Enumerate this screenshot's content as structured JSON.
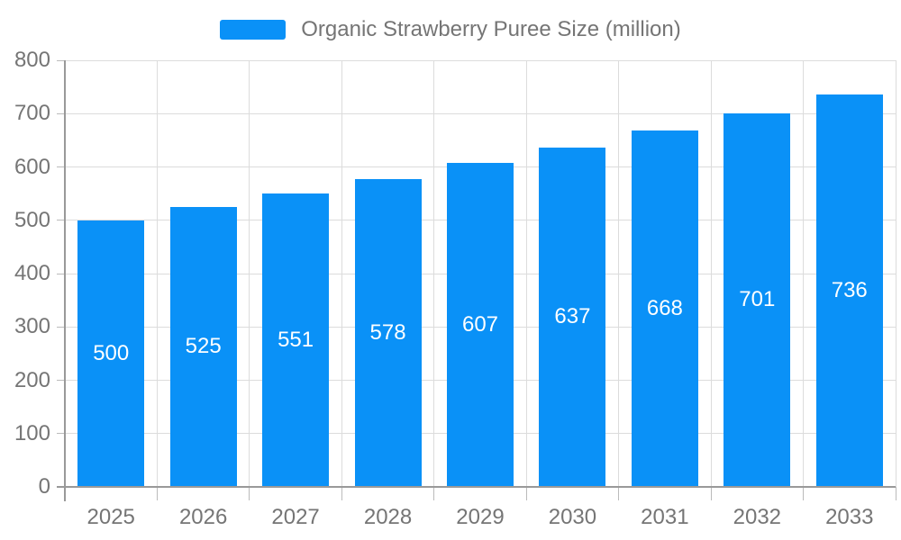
{
  "chart_data": {
    "type": "bar",
    "title": "Organic Strawberry Puree Size (million)",
    "categories": [
      "2025",
      "2026",
      "2027",
      "2028",
      "2029",
      "2030",
      "2031",
      "2032",
      "2033"
    ],
    "values": [
      500,
      525,
      551,
      578,
      607,
      637,
      668,
      701,
      736
    ],
    "series": [
      {
        "name": "Organic Strawberry Puree Size (million)",
        "values": [
          500,
          525,
          551,
          578,
          607,
          637,
          668,
          701,
          736
        ]
      }
    ],
    "xlabel": "",
    "ylabel": "",
    "ylim": [
      0,
      800
    ],
    "yticks": [
      0,
      100,
      200,
      300,
      400,
      500,
      600,
      700,
      800
    ],
    "grid": true,
    "legend_position": "top-center",
    "bar_label_position": "inside-center",
    "colors": {
      "bar": "#0a91f7",
      "axis_line": "#999999",
      "grid_line": "#dcdcdc",
      "tick_mark": "#bbbbbb",
      "tick_label": "#757575",
      "title": "#757575",
      "bar_label": "#ffffff",
      "background": "#ffffff"
    }
  }
}
